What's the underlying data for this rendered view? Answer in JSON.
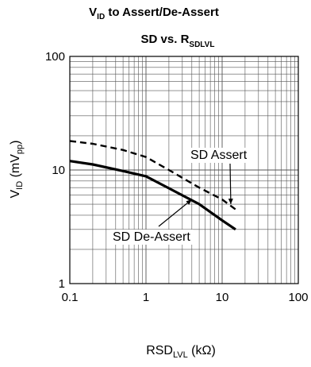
{
  "chart_data": {
    "type": "line",
    "title_line1": {
      "main": "V",
      "sub": "ID",
      "rest": " to Assert/De-Assert"
    },
    "title_line2": {
      "main": "SD vs. R",
      "sub": "SDLVL"
    },
    "xlabel": {
      "main": "RSD",
      "sub": "LVL",
      "rest": " (kΩ)"
    },
    "ylabel": {
      "main": "V",
      "sub": "ID",
      "mid": " (mV",
      "sub2": "pp",
      "rest": ")"
    },
    "x_scale": "log",
    "y_scale": "log",
    "xlim": [
      0.1,
      100
    ],
    "ylim": [
      1,
      100
    ],
    "grid": true,
    "x_ticks": [
      {
        "v": 0.1,
        "label": "0.1"
      },
      {
        "v": 1,
        "label": "1"
      },
      {
        "v": 10,
        "label": "10"
      },
      {
        "v": 100,
        "label": "100"
      }
    ],
    "y_ticks": [
      {
        "v": 1,
        "label": "1"
      },
      {
        "v": 10,
        "label": "10"
      },
      {
        "v": 100,
        "label": "100"
      }
    ],
    "series": [
      {
        "name": "SD Assert",
        "style": "dashed",
        "x": [
          0.1,
          0.2,
          0.5,
          1,
          2,
          5,
          10,
          15
        ],
        "y": [
          18,
          17,
          15,
          13,
          10,
          7,
          5.5,
          4.5
        ]
      },
      {
        "name": "SD De-Assert",
        "style": "solid",
        "x": [
          0.1,
          0.2,
          0.5,
          1,
          2,
          5,
          10,
          15
        ],
        "y": [
          12,
          11.2,
          9.8,
          8.8,
          6.9,
          5,
          3.6,
          3
        ]
      }
    ],
    "annotations": [
      {
        "text": "SD Assert",
        "target_x": 13,
        "target_y": 5,
        "series": 0
      },
      {
        "text": "SD De-Assert",
        "target_x": 4,
        "target_y": 5.5,
        "series": 1
      }
    ],
    "colors": {
      "line": "#000000",
      "grid": "#555555",
      "background": "#ffffff"
    }
  }
}
